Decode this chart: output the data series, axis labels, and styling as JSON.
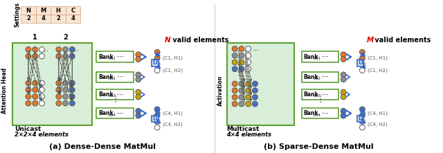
{
  "title_a": "(a) Dense-Dense MatMul",
  "title_b": "(b) Sparse-Dense MatMul",
  "table_headers": [
    "N",
    "M",
    "H",
    "C"
  ],
  "table_values": [
    "2",
    "4",
    "2",
    "4"
  ],
  "settings_label": "Settings",
  "attention_label": "Attention Head",
  "activation_label": "Activation",
  "unicast_label": "Unicast",
  "unicast_sub": "2×2×4 elements",
  "multicast_label": "Multicast",
  "multicast_sub": "4×4 elements",
  "n_valid": "N valid elements",
  "m_valid": "M valid elements",
  "bank_labels": [
    "col1",
    "col2",
    "col3",
    "col4"
  ],
  "colors": {
    "orange": "#E87722",
    "blue": "#4472C4",
    "gray": "#909090",
    "yellow": "#C8A400",
    "white_circle": "#FFFFFF",
    "green_bg": "#D8EED8",
    "green_border": "#5C9E31",
    "table_bg": "#FAE5D3",
    "table_border": "#C8A080",
    "red": "#DD0000",
    "arrow_blue": "#3366CC"
  },
  "bg_color": "#FFFFFF"
}
